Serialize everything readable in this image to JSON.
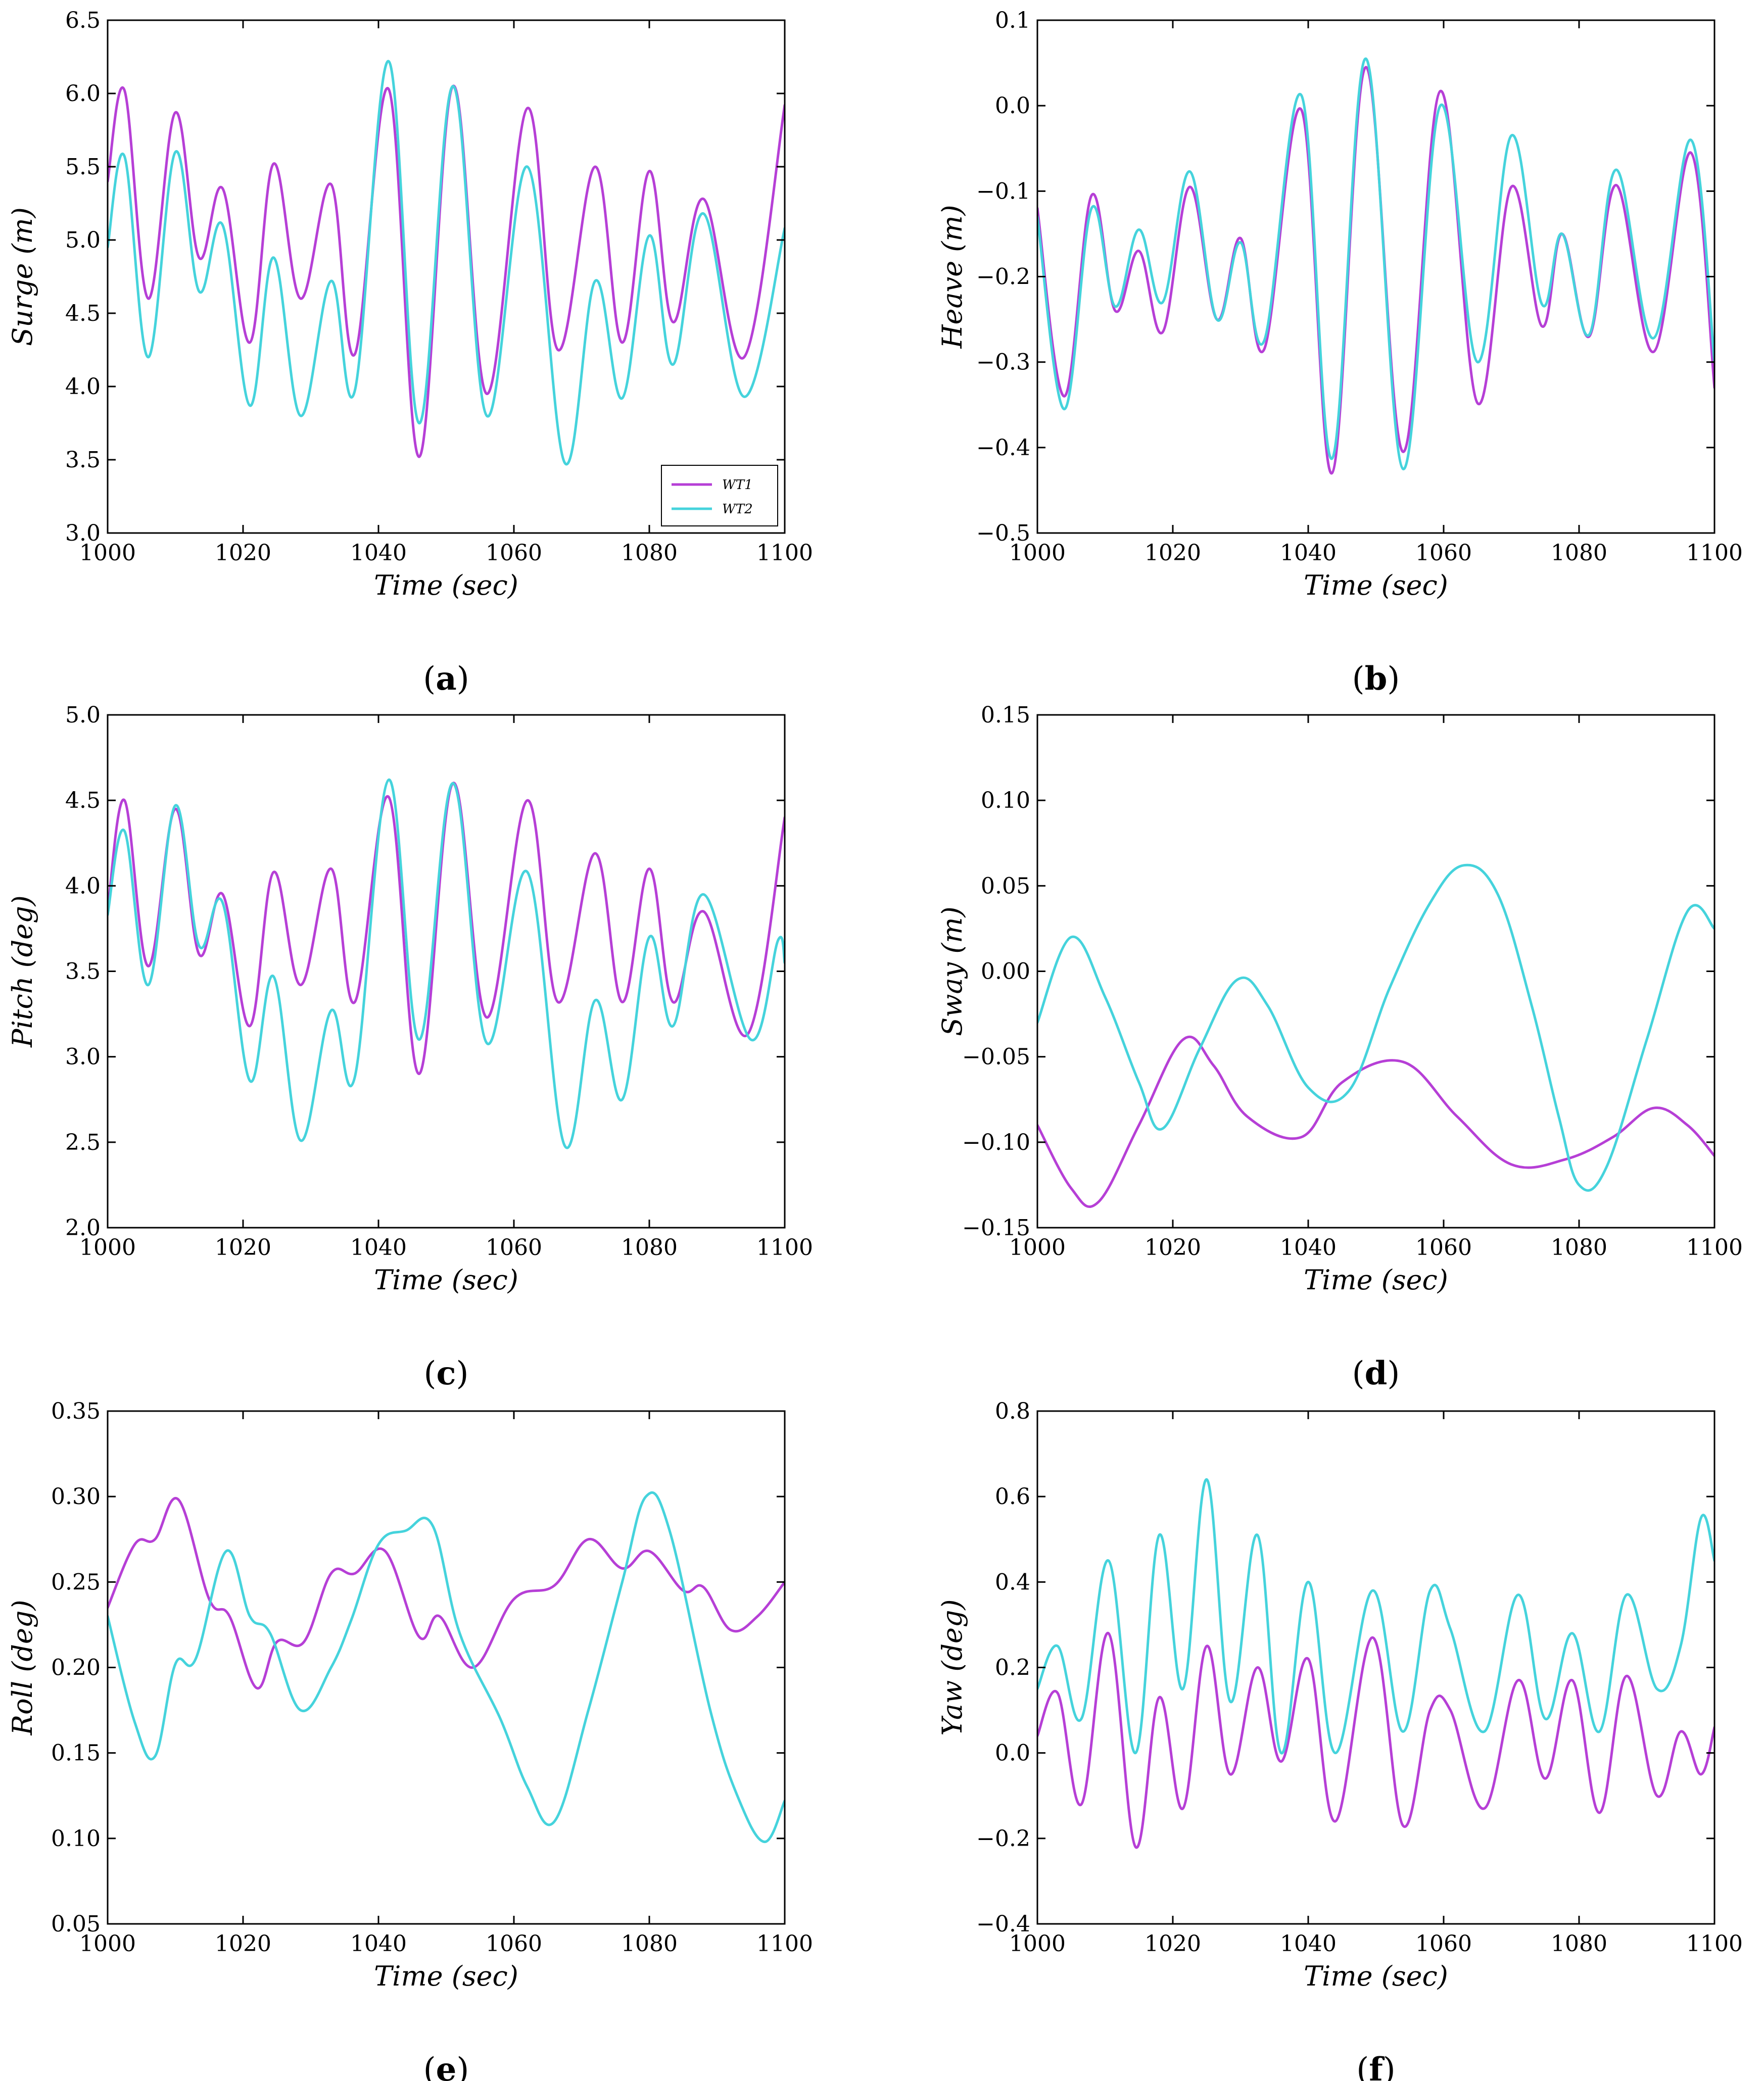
{
  "colors": {
    "WT1": "#b63fd6",
    "WT2": "#45d3dc"
  },
  "chart_data": [
    {
      "id": "a",
      "caption_letter": "a",
      "type": "line",
      "xlabel": "Time (sec)",
      "ylabel": "Surge (m)",
      "xlim": [
        1000,
        1100
      ],
      "ylim": [
        3.0,
        6.5
      ],
      "xticks": [
        "1000",
        "1020",
        "1040",
        "1060",
        "1080",
        "1100"
      ],
      "yticks": [
        "3.0",
        "3.5",
        "4.0",
        "4.5",
        "5.0",
        "5.5",
        "6.0",
        "6.5"
      ],
      "legend": {
        "placement": "lower-right",
        "entries": [
          "WT1",
          "WT2"
        ]
      },
      "series": [
        {
          "name": "WT1",
          "x": [
            1000,
            1002.5,
            1006,
            1010,
            1013.5,
            1017,
            1021,
            1024.5,
            1028.5,
            1033,
            1036.5,
            1041.5,
            1046,
            1051,
            1056,
            1062,
            1066.5,
            1072,
            1076,
            1080,
            1083.5,
            1088,
            1094,
            1100
          ],
          "y": [
            5.4,
            6.02,
            4.6,
            5.87,
            4.88,
            5.35,
            4.3,
            5.52,
            4.6,
            5.38,
            4.22,
            6.03,
            3.52,
            6.05,
            3.95,
            5.9,
            4.25,
            5.5,
            4.3,
            5.47,
            4.44,
            5.28,
            4.2,
            5.92
          ]
        },
        {
          "name": "WT2",
          "x": [
            1000,
            1002.5,
            1006,
            1010,
            1013.5,
            1017,
            1021,
            1024.5,
            1028.5,
            1033,
            1036.5,
            1041.5,
            1046,
            1051,
            1056,
            1062,
            1067.5,
            1072,
            1076,
            1080,
            1083.5,
            1088,
            1094,
            1100
          ],
          "y": [
            4.95,
            5.57,
            4.2,
            5.6,
            4.65,
            5.1,
            3.87,
            4.88,
            3.8,
            4.72,
            3.97,
            6.22,
            3.75,
            6.05,
            3.8,
            5.5,
            3.48,
            4.72,
            3.92,
            5.03,
            4.15,
            5.18,
            3.93,
            5.08
          ]
        }
      ]
    },
    {
      "id": "b",
      "caption_letter": "b",
      "type": "line",
      "xlabel": "Time (sec)",
      "ylabel": "Heave (m)",
      "xlim": [
        1000,
        1100
      ],
      "ylim": [
        -0.5,
        0.1
      ],
      "xticks": [
        "1000",
        "1020",
        "1040",
        "1060",
        "1080",
        "1100"
      ],
      "yticks": [
        "−0.5",
        "−0.4",
        "−0.3",
        "−0.2",
        "−0.1",
        "0.0",
        "0.1"
      ],
      "series": [
        {
          "name": "WT1",
          "x": [
            1000,
            1004,
            1008,
            1011.5,
            1015,
            1018.5,
            1022.5,
            1026.5,
            1030,
            1033.5,
            1039,
            1043.5,
            1048.5,
            1054,
            1059.5,
            1065,
            1070,
            1074.5,
            1077.5,
            1081.5,
            1085.5,
            1091,
            1096.5,
            1100
          ],
          "y": [
            -0.12,
            -0.34,
            -0.105,
            -0.24,
            -0.17,
            -0.265,
            -0.095,
            -0.25,
            -0.155,
            -0.285,
            -0.005,
            -0.43,
            0.045,
            -0.405,
            0.017,
            -0.348,
            -0.095,
            -0.258,
            -0.15,
            -0.27,
            -0.093,
            -0.288,
            -0.055,
            -0.33
          ]
        },
        {
          "name": "WT2",
          "x": [
            1000,
            1004,
            1008,
            1011.5,
            1015,
            1018.5,
            1022.5,
            1026.5,
            1030,
            1033.5,
            1039,
            1043.5,
            1048.5,
            1054,
            1059.5,
            1065,
            1070,
            1074.5,
            1077.5,
            1081.5,
            1085.5,
            1091,
            1096.5,
            1100
          ],
          "y": [
            -0.13,
            -0.355,
            -0.12,
            -0.235,
            -0.145,
            -0.23,
            -0.077,
            -0.25,
            -0.16,
            -0.275,
            0.012,
            -0.413,
            0.055,
            -0.425,
            0.0,
            -0.3,
            -0.035,
            -0.232,
            -0.15,
            -0.268,
            -0.075,
            -0.272,
            -0.04,
            -0.3
          ]
        }
      ]
    },
    {
      "id": "c",
      "caption_letter": "c",
      "type": "line",
      "xlabel": "Time (sec)",
      "ylabel": "Pitch (deg)",
      "xlim": [
        1000,
        1100
      ],
      "ylim": [
        2.0,
        5.0
      ],
      "xticks": [
        "1000",
        "1020",
        "1040",
        "1060",
        "1080",
        "1100"
      ],
      "yticks": [
        "2.0",
        "2.5",
        "3.0",
        "3.5",
        "4.0",
        "4.5",
        "5.0"
      ],
      "series": [
        {
          "name": "WT1",
          "x": [
            1000,
            1002.5,
            1006,
            1010,
            1013.5,
            1017,
            1021,
            1024.5,
            1028.5,
            1033,
            1036.5,
            1041.5,
            1046,
            1051,
            1056,
            1062,
            1066.5,
            1072,
            1076,
            1080,
            1083.5,
            1088,
            1094.5,
            1100
          ],
          "y": [
            3.85,
            4.5,
            3.53,
            4.45,
            3.6,
            3.95,
            3.18,
            4.08,
            3.42,
            4.1,
            3.32,
            4.52,
            2.9,
            4.6,
            3.23,
            4.5,
            3.32,
            4.19,
            3.32,
            4.1,
            3.32,
            3.85,
            3.13,
            4.4
          ]
        },
        {
          "name": "WT2",
          "x": [
            1000,
            1002.5,
            1006,
            1010,
            1013.5,
            1017,
            1021,
            1024.5,
            1028.5,
            1033,
            1036.5,
            1041.5,
            1046,
            1051,
            1056,
            1062,
            1067.5,
            1072,
            1076,
            1080,
            1083.5,
            1088,
            1095,
            1099,
            1100
          ],
          "y": [
            3.83,
            4.32,
            3.42,
            4.47,
            3.65,
            3.9,
            2.86,
            3.47,
            2.51,
            3.27,
            2.88,
            4.62,
            3.1,
            4.6,
            3.08,
            4.08,
            2.48,
            3.33,
            2.75,
            3.7,
            3.18,
            3.95,
            3.1,
            3.68,
            3.55
          ]
        }
      ]
    },
    {
      "id": "d",
      "caption_letter": "d",
      "type": "line",
      "xlabel": "Time (sec)",
      "ylabel": "Sway (m)",
      "xlim": [
        1000,
        1100
      ],
      "ylim": [
        -0.15,
        0.15
      ],
      "xticks": [
        "1000",
        "1020",
        "1040",
        "1060",
        "1080",
        "1100"
      ],
      "yticks": [
        "−0.15",
        "−0.10",
        "−0.05",
        "0.00",
        "0.05",
        "0.10",
        "0.15"
      ],
      "series": [
        {
          "name": "WT1",
          "x": [
            1000,
            1005,
            1009,
            1015,
            1021.5,
            1026,
            1031,
            1039,
            1045,
            1054,
            1062,
            1070,
            1078,
            1085,
            1091,
            1096,
            1100
          ],
          "y": [
            -0.09,
            -0.127,
            -0.135,
            -0.09,
            -0.04,
            -0.055,
            -0.085,
            -0.097,
            -0.065,
            -0.053,
            -0.085,
            -0.113,
            -0.11,
            -0.097,
            -0.08,
            -0.09,
            -0.108
          ]
        },
        {
          "name": "WT2",
          "x": [
            1000,
            1005,
            1010,
            1015,
            1018.5,
            1024,
            1029.5,
            1034,
            1040,
            1046,
            1052,
            1058,
            1063,
            1068,
            1073,
            1077,
            1080,
            1084,
            1090,
            1096,
            1100
          ],
          "y": [
            -0.03,
            0.02,
            -0.015,
            -0.065,
            -0.092,
            -0.045,
            -0.005,
            -0.02,
            -0.068,
            -0.07,
            -0.01,
            0.04,
            0.062,
            0.045,
            -0.02,
            -0.085,
            -0.125,
            -0.115,
            -0.04,
            0.035,
            0.025
          ]
        }
      ]
    },
    {
      "id": "e",
      "caption_letter": "e",
      "type": "line",
      "xlabel": "Time (sec)",
      "ylabel": "Roll (deg)",
      "xlim": [
        1000,
        1100
      ],
      "ylim": [
        0.05,
        0.35
      ],
      "xticks": [
        "1000",
        "1020",
        "1040",
        "1060",
        "1080",
        "1100"
      ],
      "yticks": [
        "0.05",
        "0.10",
        "0.15",
        "0.20",
        "0.25",
        "0.30",
        "0.35"
      ],
      "series": [
        {
          "name": "WT1",
          "x": [
            1000,
            1004,
            1007,
            1010.5,
            1015,
            1018,
            1022,
            1025,
            1029,
            1033,
            1036.5,
            1041,
            1046,
            1049,
            1054,
            1060,
            1066,
            1071,
            1076,
            1080,
            1085,
            1088,
            1092,
            1096,
            1100
          ],
          "y": [
            0.235,
            0.272,
            0.275,
            0.298,
            0.24,
            0.23,
            0.188,
            0.215,
            0.215,
            0.255,
            0.255,
            0.268,
            0.218,
            0.23,
            0.2,
            0.24,
            0.248,
            0.275,
            0.258,
            0.268,
            0.245,
            0.247,
            0.222,
            0.23,
            0.25
          ]
        },
        {
          "name": "WT2",
          "x": [
            1000,
            1004,
            1007,
            1010,
            1013,
            1017.5,
            1021,
            1024,
            1028.5,
            1033,
            1036,
            1040,
            1044,
            1048,
            1052,
            1058,
            1062,
            1066,
            1071,
            1076,
            1079.5,
            1083,
            1089,
            1093,
            1097,
            1100
          ],
          "y": [
            0.23,
            0.168,
            0.148,
            0.202,
            0.205,
            0.268,
            0.23,
            0.22,
            0.175,
            0.2,
            0.228,
            0.272,
            0.28,
            0.283,
            0.22,
            0.17,
            0.13,
            0.11,
            0.175,
            0.25,
            0.3,
            0.28,
            0.175,
            0.125,
            0.098,
            0.122
          ]
        }
      ]
    },
    {
      "id": "f",
      "caption_letter": "f",
      "type": "line",
      "xlabel": "Time (sec)",
      "ylabel": "Yaw (deg)",
      "xlim": [
        1000,
        1100
      ],
      "ylim": [
        -0.4,
        0.8
      ],
      "xticks": [
        "1000",
        "1020",
        "1040",
        "1060",
        "1080",
        "1100"
      ],
      "yticks": [
        "−0.4",
        "−0.2",
        "0.0",
        "0.2",
        "0.4",
        "0.6",
        "0.8"
      ],
      "series": [
        {
          "name": "WT1",
          "x": [
            1000,
            1003,
            1006.5,
            1010.5,
            1014.5,
            1018,
            1021.5,
            1025,
            1028.5,
            1032.5,
            1036,
            1040,
            1044,
            1049.5,
            1054,
            1058,
            1061,
            1066,
            1071,
            1075,
            1079,
            1083,
            1087,
            1091.5,
            1095,
            1098,
            1100
          ],
          "y": [
            0.04,
            0.14,
            -0.12,
            0.28,
            -0.22,
            0.13,
            -0.13,
            0.25,
            -0.05,
            0.2,
            -0.02,
            0.22,
            -0.16,
            0.27,
            -0.17,
            0.1,
            0.1,
            -0.13,
            0.17,
            -0.06,
            0.17,
            -0.14,
            0.18,
            -0.1,
            0.05,
            -0.05,
            0.06
          ]
        },
        {
          "name": "WT2",
          "x": [
            1000,
            1003,
            1006.5,
            1010.5,
            1014.5,
            1018,
            1021.5,
            1025,
            1028.5,
            1032.5,
            1036,
            1040,
            1044,
            1049.5,
            1054,
            1058,
            1061,
            1066,
            1071,
            1075,
            1079,
            1083,
            1087,
            1091.5,
            1095,
            1098,
            1100
          ],
          "y": [
            0.15,
            0.25,
            0.08,
            0.45,
            0.0,
            0.51,
            0.15,
            0.64,
            0.12,
            0.51,
            0.0,
            0.4,
            0.0,
            0.38,
            0.05,
            0.38,
            0.29,
            0.05,
            0.37,
            0.08,
            0.28,
            0.05,
            0.37,
            0.15,
            0.25,
            0.55,
            0.45
          ]
        }
      ]
    }
  ]
}
